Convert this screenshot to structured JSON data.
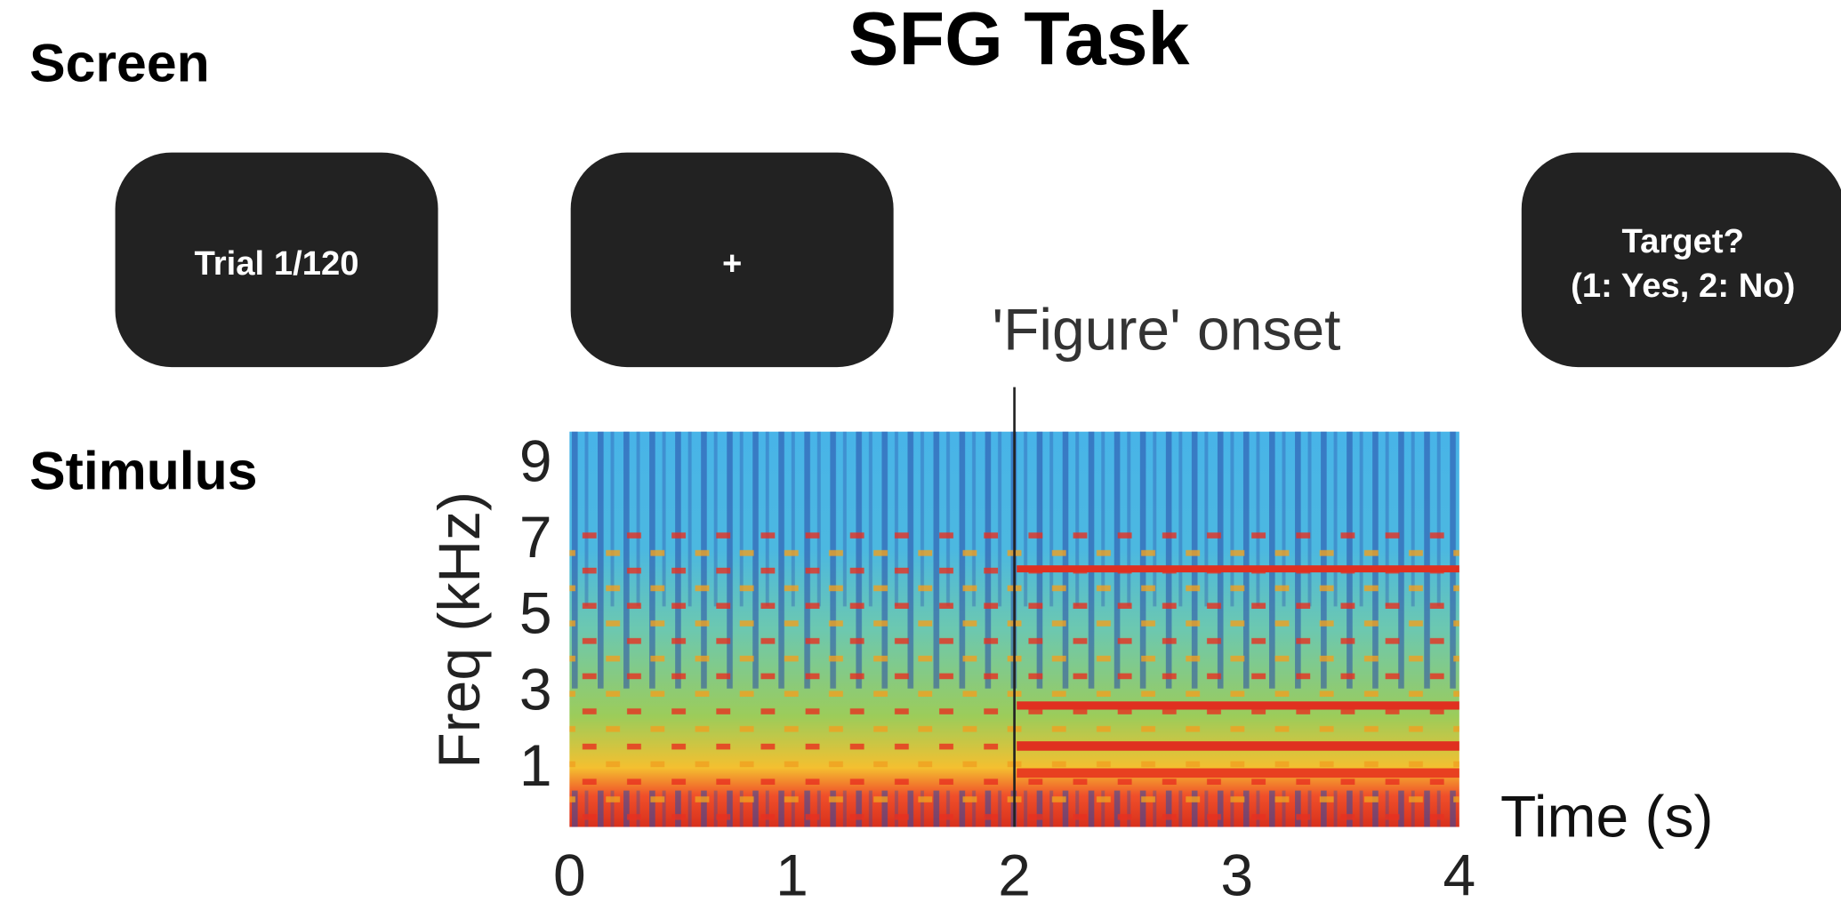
{
  "title": "SFG Task",
  "sections": {
    "screen": "Screen",
    "stimulus": "Stimulus"
  },
  "screens": [
    {
      "lines": [
        "Trial 1/120"
      ]
    },
    {
      "lines": [
        "+"
      ]
    },
    {
      "lines": [
        "Target?",
        "(1: Yes, 2: No)"
      ]
    }
  ],
  "annotation": "'Figure' onset",
  "spectrogram": {
    "x_label": "Time (s)",
    "y_label": "Freq (kHz)",
    "xlim": [
      0,
      4
    ],
    "ylim": [
      -0.5,
      9.9
    ],
    "xticks": [
      0,
      1,
      2,
      3,
      4
    ],
    "yticks": [
      1,
      3,
      5,
      7,
      9
    ],
    "onset": 2
  }
}
